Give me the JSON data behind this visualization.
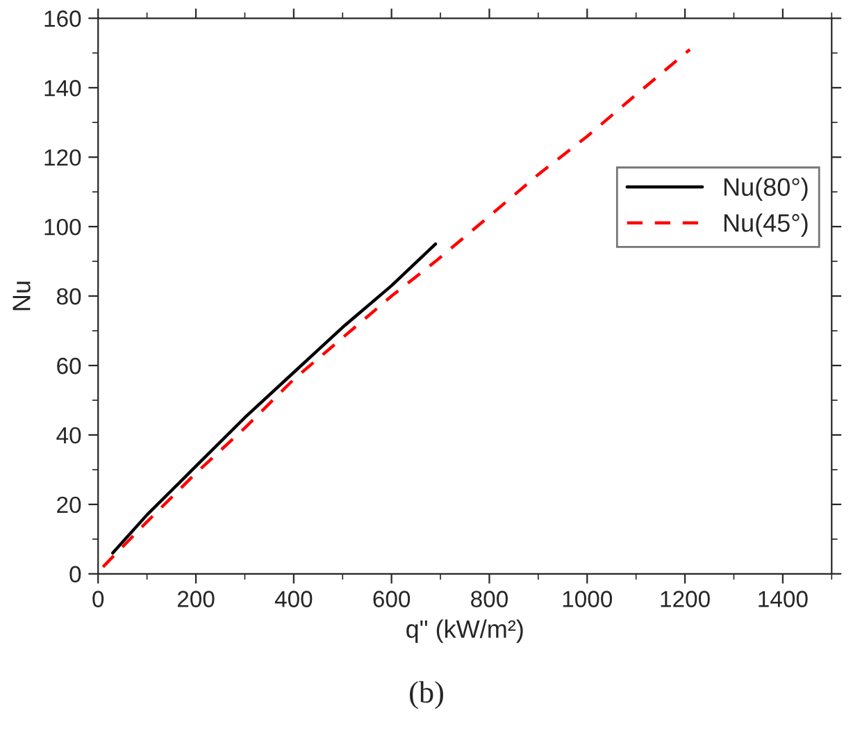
{
  "chart_data": {
    "type": "line",
    "xlabel": "q\" (kW/m²)",
    "ylabel": "Nu",
    "annotations": [
      "(b)"
    ],
    "xlim": [
      0,
      1500
    ],
    "xticks": [
      0,
      200,
      400,
      600,
      800,
      1000,
      1200,
      1400
    ],
    "ylim": [
      0,
      160
    ],
    "yticks": [
      0,
      20,
      40,
      60,
      80,
      100,
      120,
      140,
      160
    ],
    "grid": false,
    "legend": "right",
    "marker": "none",
    "series": [
      {
        "name": "Nu(80°)",
        "color": "#000000",
        "line_style": "solid",
        "x": [
          30,
          100,
          200,
          300,
          400,
          500,
          600,
          690
        ],
        "values": [
          6,
          17,
          31,
          45,
          58,
          71,
          83,
          95
        ]
      },
      {
        "name": "Nu(45°)",
        "color": "#ff0000",
        "line_style": "dashed",
        "x": [
          10,
          100,
          200,
          300,
          400,
          500,
          600,
          690,
          800,
          900,
          1000,
          1100,
          1210
        ],
        "values": [
          2,
          15,
          29,
          42,
          56,
          68,
          80,
          90,
          103,
          115,
          126,
          138,
          151
        ]
      }
    ]
  }
}
